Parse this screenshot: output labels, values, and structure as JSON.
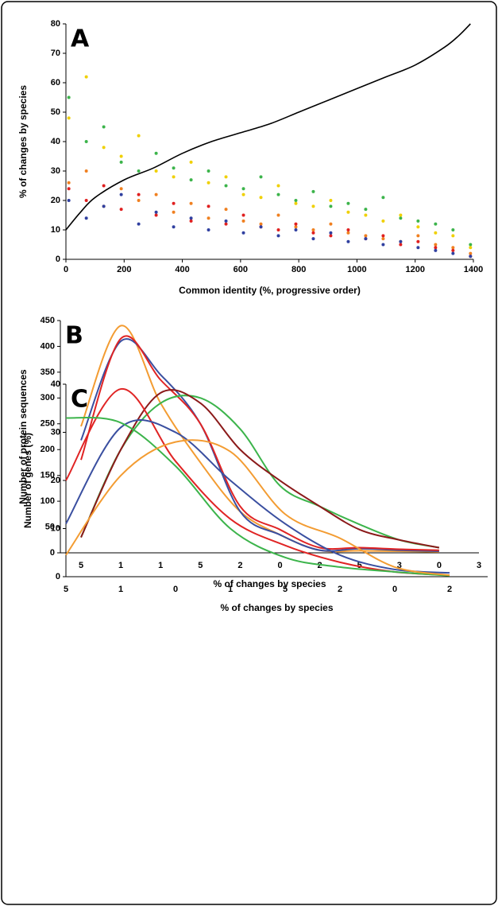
{
  "chart_data": [
    {
      "type": "scatter",
      "label": "A",
      "x_label": "Common identity (%, progressive order)",
      "y_label": "% of changes by species",
      "xlim": [
        0,
        1400
      ],
      "xticks": [
        0,
        200,
        400,
        600,
        800,
        1000,
        1200,
        1400
      ],
      "ylim": [
        0,
        80
      ],
      "yticks": [
        0,
        10,
        20,
        30,
        40,
        50,
        60,
        70,
        80
      ],
      "x": [
        10,
        70,
        130,
        190,
        250,
        310,
        370,
        430,
        490,
        550,
        610,
        670,
        730,
        790,
        850,
        910,
        970,
        1030,
        1090,
        1150,
        1210,
        1270,
        1330,
        1390
      ],
      "series": [
        {
          "color": "#3cb44b",
          "values": [
            55,
            40,
            45,
            33,
            30,
            36,
            31,
            27,
            30,
            25,
            24,
            28,
            22,
            20,
            23,
            18,
            19,
            17,
            21,
            14,
            13,
            12,
            10,
            5
          ]
        },
        {
          "color": "#f0d000",
          "values": [
            48,
            62,
            38,
            35,
            42,
            30,
            28,
            33,
            26,
            28,
            22,
            21,
            25,
            19,
            18,
            20,
            16,
            15,
            13,
            15,
            11,
            9,
            8,
            4
          ]
        },
        {
          "color": "#f08020",
          "values": [
            26,
            30,
            18,
            24,
            20,
            22,
            16,
            19,
            14,
            17,
            13,
            12,
            15,
            11,
            10,
            12,
            9,
            8,
            7,
            6,
            8,
            5,
            4,
            2
          ]
        },
        {
          "color": "#e02020",
          "values": [
            24,
            20,
            25,
            17,
            22,
            15,
            19,
            13,
            18,
            12,
            15,
            11,
            10,
            12,
            9,
            8,
            10,
            7,
            8,
            5,
            6,
            4,
            3,
            1
          ]
        },
        {
          "color": "#3040a0",
          "values": [
            20,
            14,
            18,
            22,
            12,
            16,
            11,
            14,
            10,
            13,
            9,
            11,
            8,
            10,
            7,
            9,
            6,
            7,
            5,
            6,
            4,
            3,
            2,
            1
          ]
        }
      ],
      "line": {
        "color": "#000000",
        "x": [
          0,
          50,
          100,
          200,
          300,
          400,
          500,
          600,
          700,
          800,
          900,
          1000,
          1100,
          1200,
          1300,
          1350,
          1390
        ],
        "values": [
          10,
          16,
          21,
          27,
          31,
          36,
          40,
          43,
          46,
          50,
          54,
          58,
          62,
          66,
          72,
          76,
          80
        ]
      }
    },
    {
      "type": "line",
      "label": "B",
      "x_label": "% of changes by species",
      "y_label": "Number of protein sequences",
      "categories": [
        "5",
        "1",
        "1",
        "5",
        "2",
        "0",
        "2",
        "5",
        "3",
        "0",
        "3"
      ],
      "ylim": [
        0,
        450
      ],
      "yticks": [
        0,
        50,
        100,
        150,
        200,
        250,
        300,
        350,
        400,
        450
      ],
      "series": [
        {
          "color": "#f39c32",
          "values": [
            245,
            440,
            290,
            175,
            80,
            35,
            5,
            4,
            3,
            2,
            null
          ]
        },
        {
          "color": "#3a4fa0",
          "values": [
            218,
            410,
            345,
            250,
            80,
            35,
            5,
            8,
            5,
            3,
            null
          ]
        },
        {
          "color": "#e02424",
          "values": [
            180,
            415,
            335,
            250,
            90,
            45,
            10,
            10,
            7,
            5,
            null
          ]
        },
        {
          "color": "#3cb44b",
          "values": [
            30,
            200,
            290,
            300,
            240,
            130,
            90,
            55,
            25,
            10,
            null
          ]
        },
        {
          "color": "#8b1a1a",
          "values": [
            30,
            200,
            310,
            290,
            200,
            140,
            90,
            45,
            25,
            10,
            null
          ]
        }
      ]
    },
    {
      "type": "line",
      "label": "C",
      "x_label": "% of changes by species",
      "y_label": "Number of genes (%)",
      "categories": [
        "5",
        "1",
        "0",
        "1",
        "5",
        "2",
        "0",
        "2"
      ],
      "ylim": [
        0,
        40
      ],
      "yticks": [
        0,
        10,
        20,
        30,
        40
      ],
      "series": [
        {
          "color": "#e02424",
          "values": [
            20,
            39,
            24,
            12,
            6.5,
            3,
            1,
            0.3
          ]
        },
        {
          "color": "#3a4fa0",
          "values": [
            11,
            31,
            30,
            20,
            11,
            4.5,
            1.5,
            0.8
          ]
        },
        {
          "color": "#3cb44b",
          "values": [
            33,
            32,
            23,
            10,
            4,
            2,
            1,
            0.2
          ]
        },
        {
          "color": "#f39c32",
          "values": [
            4.5,
            21,
            28,
            26,
            13,
            8,
            2,
            0.3
          ]
        }
      ]
    }
  ]
}
